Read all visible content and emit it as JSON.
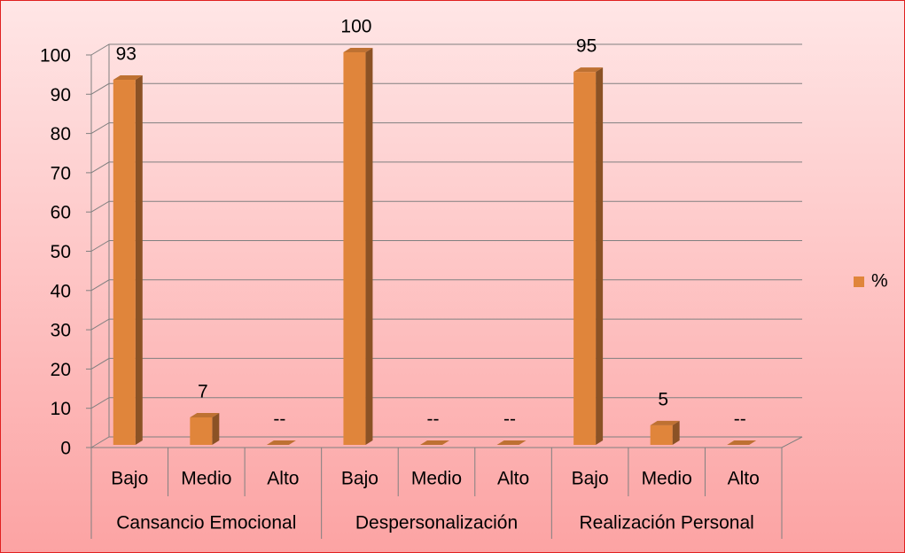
{
  "chart_data": {
    "type": "bar3d",
    "categories": [
      "Bajo",
      "Medio",
      "Alto",
      "Bajo",
      "Medio",
      "Alto",
      "Bajo",
      "Medio",
      "Alto"
    ],
    "category_groups": [
      "Cansancio Emocional",
      "Despersonalización",
      "Realización Personal"
    ],
    "series": [
      {
        "name": "%",
        "color": "#e0853b",
        "values": [
          93,
          7,
          0,
          100,
          0,
          0,
          95,
          5,
          0
        ],
        "value_labels": [
          "93",
          "7",
          "--",
          "100",
          "--",
          "--",
          "95",
          "5",
          "--"
        ]
      }
    ],
    "ylim": [
      0,
      100
    ],
    "yticks": [
      0,
      10,
      20,
      30,
      40,
      50,
      60,
      70,
      80,
      90,
      100
    ],
    "grid": true,
    "legend": "right"
  }
}
